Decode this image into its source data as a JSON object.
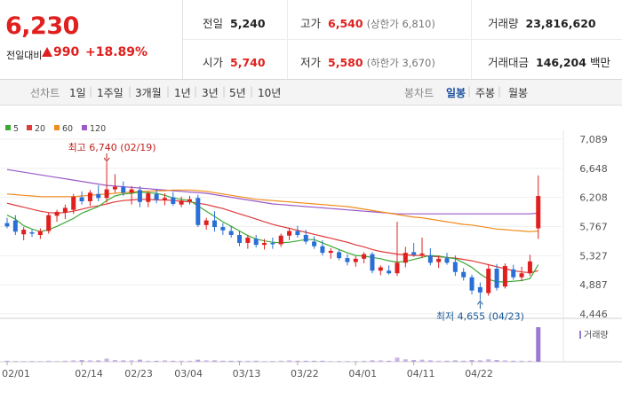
{
  "quote": {
    "price": "6,230",
    "change_label": "전일대비",
    "change_amount": "990",
    "change_pct": "+18.89%",
    "prev_close_label": "전일",
    "prev_close": "5,240",
    "high_label": "고가",
    "high": "6,540",
    "upper_limit": "(상한가 6,810)",
    "volume_label": "거래량",
    "volume": "23,816,620",
    "open_label": "시가",
    "open": "5,740",
    "low_label": "저가",
    "low": "5,580",
    "lower_limit": "(하한가 3,670)",
    "amount_label": "거래대금",
    "amount": "146,204",
    "amount_unit": "백만"
  },
  "tabs": {
    "period_label": "선차트",
    "periods": [
      "1일",
      "1주일",
      "3개월",
      "1년",
      "3년",
      "5년",
      "10년"
    ],
    "candle_label": "봉차트",
    "candles": [
      "일봉",
      "주봉",
      "월봉"
    ],
    "selected_candle": "일봉"
  },
  "colors": {
    "up": "#e0201e",
    "down": "#2a6fd6",
    "ma5": "#3aaa35",
    "ma20": "#e03a3a",
    "ma60": "#f08c1a",
    "ma120": "#9a5ac8"
  },
  "chart_data": {
    "type": "candlestick",
    "legend": [
      {
        "name": "5",
        "color": "#3aaa35"
      },
      {
        "name": "20",
        "color": "#e03a3a"
      },
      {
        "name": "60",
        "color": "#f08c1a"
      },
      {
        "name": "120",
        "color": "#9a5ac8"
      }
    ],
    "y_ticks": [
      7089,
      6648,
      6208,
      5767,
      5327,
      4887,
      4446
    ],
    "ylim": [
      4446,
      7089
    ],
    "x_tick_labels": [
      "02/01",
      "02/14",
      "02/23",
      "03/04",
      "03/13",
      "03/22",
      "04/01",
      "04/11",
      "04/22"
    ],
    "x_tick_index": [
      0,
      9,
      15,
      21,
      28,
      35,
      42,
      49,
      56
    ],
    "high_annotation": "최고 6,740 (02/19)",
    "high_annotation_index": 12,
    "high_value": 6740,
    "low_annotation": "최저 4,655 (04/23)",
    "low_annotation_index": 57,
    "low_value": 4655,
    "volume_label": "거래량",
    "candles": [
      {
        "o": 5820,
        "h": 5900,
        "l": 5740,
        "c": 5770
      },
      {
        "o": 5860,
        "h": 5940,
        "l": 5640,
        "c": 5690
      },
      {
        "o": 5650,
        "h": 5760,
        "l": 5560,
        "c": 5720
      },
      {
        "o": 5680,
        "h": 5720,
        "l": 5610,
        "c": 5660
      },
      {
        "o": 5640,
        "h": 5740,
        "l": 5580,
        "c": 5700
      },
      {
        "o": 5700,
        "h": 5980,
        "l": 5660,
        "c": 5940
      },
      {
        "o": 5930,
        "h": 6020,
        "l": 5840,
        "c": 5990
      },
      {
        "o": 5980,
        "h": 6100,
        "l": 5880,
        "c": 6050
      },
      {
        "o": 6020,
        "h": 6260,
        "l": 5960,
        "c": 6220
      },
      {
        "o": 6210,
        "h": 6300,
        "l": 6100,
        "c": 6150
      },
      {
        "o": 6150,
        "h": 6320,
        "l": 6080,
        "c": 6280
      },
      {
        "o": 6260,
        "h": 6390,
        "l": 6150,
        "c": 6200
      },
      {
        "o": 6200,
        "h": 6740,
        "l": 6130,
        "c": 6330
      },
      {
        "o": 6330,
        "h": 6560,
        "l": 6280,
        "c": 6370
      },
      {
        "o": 6370,
        "h": 6450,
        "l": 6230,
        "c": 6280
      },
      {
        "o": 6280,
        "h": 6380,
        "l": 6100,
        "c": 6330
      },
      {
        "o": 6320,
        "h": 6380,
        "l": 6060,
        "c": 6140
      },
      {
        "o": 6140,
        "h": 6300,
        "l": 6060,
        "c": 6270
      },
      {
        "o": 6260,
        "h": 6330,
        "l": 6120,
        "c": 6170
      },
      {
        "o": 6170,
        "h": 6270,
        "l": 6090,
        "c": 6200
      },
      {
        "o": 6210,
        "h": 6290,
        "l": 6080,
        "c": 6110
      },
      {
        "o": 6100,
        "h": 6220,
        "l": 6060,
        "c": 6160
      },
      {
        "o": 6150,
        "h": 6230,
        "l": 6100,
        "c": 6180
      },
      {
        "o": 6200,
        "h": 6250,
        "l": 5760,
        "c": 5790
      },
      {
        "o": 5790,
        "h": 5900,
        "l": 5720,
        "c": 5860
      },
      {
        "o": 5860,
        "h": 6000,
        "l": 5690,
        "c": 5760
      },
      {
        "o": 5760,
        "h": 5820,
        "l": 5640,
        "c": 5710
      },
      {
        "o": 5700,
        "h": 5780,
        "l": 5600,
        "c": 5640
      },
      {
        "o": 5640,
        "h": 5700,
        "l": 5470,
        "c": 5520
      },
      {
        "o": 5520,
        "h": 5640,
        "l": 5430,
        "c": 5600
      },
      {
        "o": 5580,
        "h": 5640,
        "l": 5450,
        "c": 5490
      },
      {
        "o": 5490,
        "h": 5580,
        "l": 5420,
        "c": 5520
      },
      {
        "o": 5520,
        "h": 5600,
        "l": 5430,
        "c": 5500
      },
      {
        "o": 5500,
        "h": 5660,
        "l": 5460,
        "c": 5630
      },
      {
        "o": 5630,
        "h": 5750,
        "l": 5560,
        "c": 5700
      },
      {
        "o": 5700,
        "h": 5780,
        "l": 5600,
        "c": 5640
      },
      {
        "o": 5640,
        "h": 5720,
        "l": 5500,
        "c": 5540
      },
      {
        "o": 5540,
        "h": 5620,
        "l": 5430,
        "c": 5470
      },
      {
        "o": 5470,
        "h": 5560,
        "l": 5330,
        "c": 5370
      },
      {
        "o": 5370,
        "h": 5440,
        "l": 5280,
        "c": 5400
      },
      {
        "o": 5380,
        "h": 5420,
        "l": 5260,
        "c": 5290
      },
      {
        "o": 5290,
        "h": 5350,
        "l": 5180,
        "c": 5230
      },
      {
        "o": 5230,
        "h": 5320,
        "l": 5160,
        "c": 5280
      },
      {
        "o": 5280,
        "h": 5380,
        "l": 5210,
        "c": 5350
      },
      {
        "o": 5350,
        "h": 5380,
        "l": 5060,
        "c": 5100
      },
      {
        "o": 5100,
        "h": 5180,
        "l": 5030,
        "c": 5150
      },
      {
        "o": 5100,
        "h": 5180,
        "l": 5040,
        "c": 5060
      },
      {
        "o": 5060,
        "h": 5840,
        "l": 5020,
        "c": 5220
      },
      {
        "o": 5220,
        "h": 5460,
        "l": 5150,
        "c": 5370
      },
      {
        "o": 5380,
        "h": 5520,
        "l": 5310,
        "c": 5340
      },
      {
        "o": 5340,
        "h": 5600,
        "l": 5290,
        "c": 5360
      },
      {
        "o": 5330,
        "h": 5440,
        "l": 5180,
        "c": 5220
      },
      {
        "o": 5230,
        "h": 5330,
        "l": 5140,
        "c": 5280
      },
      {
        "o": 5290,
        "h": 5370,
        "l": 5190,
        "c": 5220
      },
      {
        "o": 5230,
        "h": 5330,
        "l": 5020,
        "c": 5080
      },
      {
        "o": 5080,
        "h": 5140,
        "l": 4950,
        "c": 5000
      },
      {
        "o": 5000,
        "h": 5040,
        "l": 4740,
        "c": 4800
      },
      {
        "o": 4850,
        "h": 4920,
        "l": 4655,
        "c": 4770
      },
      {
        "o": 4760,
        "h": 5190,
        "l": 4720,
        "c": 5130
      },
      {
        "o": 5130,
        "h": 5200,
        "l": 4800,
        "c": 4840
      },
      {
        "o": 4860,
        "h": 5210,
        "l": 4830,
        "c": 5170
      },
      {
        "o": 5120,
        "h": 5190,
        "l": 4960,
        "c": 5000
      },
      {
        "o": 5000,
        "h": 5160,
        "l": 4940,
        "c": 5060
      },
      {
        "o": 5060,
        "h": 5340,
        "l": 5020,
        "c": 5240
      },
      {
        "o": 5740,
        "h": 6540,
        "l": 5580,
        "c": 6230
      }
    ],
    "volume": [
      3,
      2,
      2,
      2,
      2,
      3,
      2,
      3,
      4,
      5,
      4,
      4,
      9,
      5,
      4,
      4,
      6,
      3,
      3,
      4,
      3,
      3,
      3,
      6,
      4,
      4,
      3,
      3,
      3,
      3,
      3,
      2,
      2,
      3,
      4,
      3,
      3,
      3,
      3,
      2,
      2,
      2,
      2,
      3,
      4,
      4,
      3,
      12,
      7,
      5,
      6,
      4,
      3,
      3,
      4,
      3,
      5,
      4,
      7,
      5,
      4,
      3,
      3,
      3,
      100
    ],
    "ma5": [
      5940,
      5880,
      5780,
      5730,
      5690,
      5720,
      5770,
      5830,
      5890,
      5970,
      6020,
      6070,
      6160,
      6230,
      6260,
      6270,
      6290,
      6280,
      6270,
      6240,
      6200,
      6180,
      6160,
      6080,
      6000,
      5920,
      5840,
      5770,
      5700,
      5630,
      5580,
      5550,
      5530,
      5520,
      5530,
      5550,
      5570,
      5570,
      5520,
      5470,
      5420,
      5370,
      5330,
      5320,
      5300,
      5280,
      5250,
      5230,
      5240,
      5270,
      5300,
      5330,
      5320,
      5300,
      5280,
      5220,
      5150,
      5050,
      4970,
      4930,
      4930,
      4940,
      4950,
      4980,
      5190
    ],
    "ma20": [
      6120,
      6090,
      6060,
      6030,
      6000,
      5980,
      5970,
      5980,
      6000,
      6030,
      6060,
      6080,
      6110,
      6140,
      6160,
      6170,
      6180,
      6180,
      6170,
      6170,
      6160,
      6150,
      6140,
      6120,
      6100,
      6070,
      6040,
      6000,
      5960,
      5920,
      5880,
      5840,
      5800,
      5770,
      5740,
      5710,
      5680,
      5650,
      5620,
      5590,
      5560,
      5530,
      5490,
      5460,
      5420,
      5390,
      5370,
      5350,
      5340,
      5330,
      5330,
      5320,
      5310,
      5300,
      5290,
      5270,
      5250,
      5220,
      5190,
      5160,
      5130,
      5100,
      5080,
      5070,
      5100
    ],
    "ma60": [
      6260,
      6250,
      6240,
      6230,
      6220,
      6220,
      6220,
      6220,
      6220,
      6230,
      6240,
      6250,
      6260,
      6270,
      6280,
      6290,
      6300,
      6300,
      6310,
      6310,
      6320,
      6320,
      6320,
      6310,
      6300,
      6280,
      6260,
      6240,
      6220,
      6200,
      6180,
      6170,
      6160,
      6150,
      6140,
      6130,
      6120,
      6110,
      6100,
      6090,
      6080,
      6070,
      6050,
      6030,
      6010,
      5990,
      5970,
      5950,
      5930,
      5910,
      5900,
      5880,
      5860,
      5840,
      5820,
      5800,
      5790,
      5770,
      5750,
      5730,
      5720,
      5710,
      5700,
      5690,
      5700
    ],
    "ma120": [
      6630,
      6610,
      6590,
      6570,
      6550,
      6530,
      6510,
      6490,
      6470,
      6450,
      6430,
      6410,
      6390,
      6380,
      6370,
      6360,
      6350,
      6340,
      6330,
      6320,
      6310,
      6300,
      6290,
      6280,
      6270,
      6250,
      6230,
      6210,
      6190,
      6170,
      6150,
      6130,
      6110,
      6100,
      6090,
      6080,
      6070,
      6060,
      6050,
      6040,
      6030,
      6020,
      6010,
      6000,
      5990,
      5980,
      5970,
      5960,
      5960,
      5960,
      5960,
      5960,
      5960,
      5960,
      5960,
      5960,
      5960,
      5960,
      5960,
      5960,
      5960,
      5960,
      5960,
      5960,
      5970
    ]
  }
}
